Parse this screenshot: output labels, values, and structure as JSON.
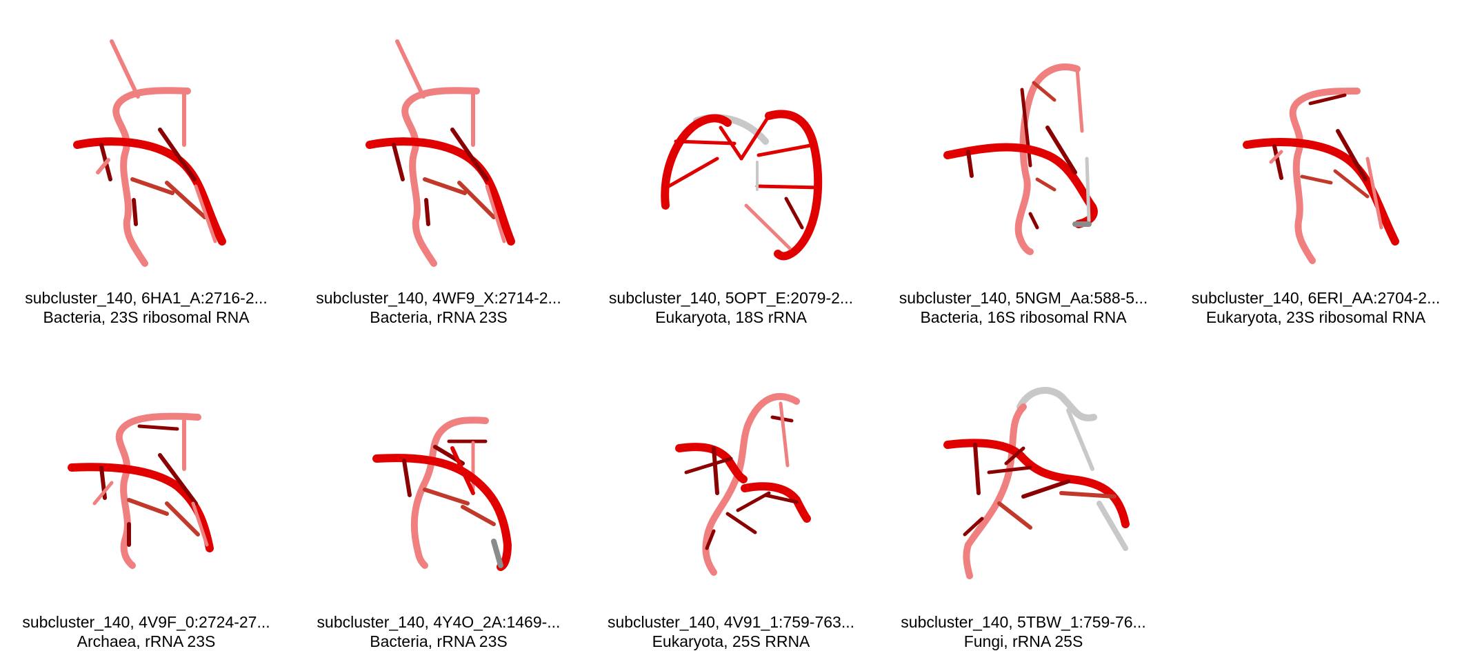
{
  "panels": [
    {
      "id_line": "subcluster_140, 6HA1_A:2716-2...",
      "taxon_line": "Bacteria, 23S ribosomal RNA",
      "variant": "a"
    },
    {
      "id_line": "subcluster_140, 4WF9_X:2714-2...",
      "taxon_line": "Bacteria, rRNA 23S",
      "variant": "a"
    },
    {
      "id_line": "subcluster_140, 5OPT_E:2079-2...",
      "taxon_line": "Eukaryota, 18S rRNA",
      "variant": "b"
    },
    {
      "id_line": "subcluster_140, 5NGM_Aa:588-5...",
      "taxon_line": "Bacteria, 16S ribosomal RNA",
      "variant": "c"
    },
    {
      "id_line": "subcluster_140, 6ERI_AA:2704-2...",
      "taxon_line": "Eukaryota, 23S ribosomal RNA",
      "variant": "a"
    },
    {
      "id_line": "subcluster_140, 4V9F_0:2724-27...",
      "taxon_line": "Archaea, rRNA 23S",
      "variant": "a"
    },
    {
      "id_line": "subcluster_140, 4Y4O_2A:1469-...",
      "taxon_line": "Bacteria, rRNA 23S",
      "variant": "d"
    },
    {
      "id_line": "subcluster_140, 4V91_1:759-763...",
      "taxon_line": "Eukaryota, 25S RRNA",
      "variant": "e"
    },
    {
      "id_line": "subcluster_140, 5TBW_1:759-76...",
      "taxon_line": "Fungi, rRNA 25S",
      "variant": "f"
    }
  ],
  "colors": {
    "backbone_dark": "#e00000",
    "backbone_light": "#f08080",
    "base_dark": "#8b0000",
    "base_mid": "#c0392b",
    "grey": "#c8c8c8"
  }
}
